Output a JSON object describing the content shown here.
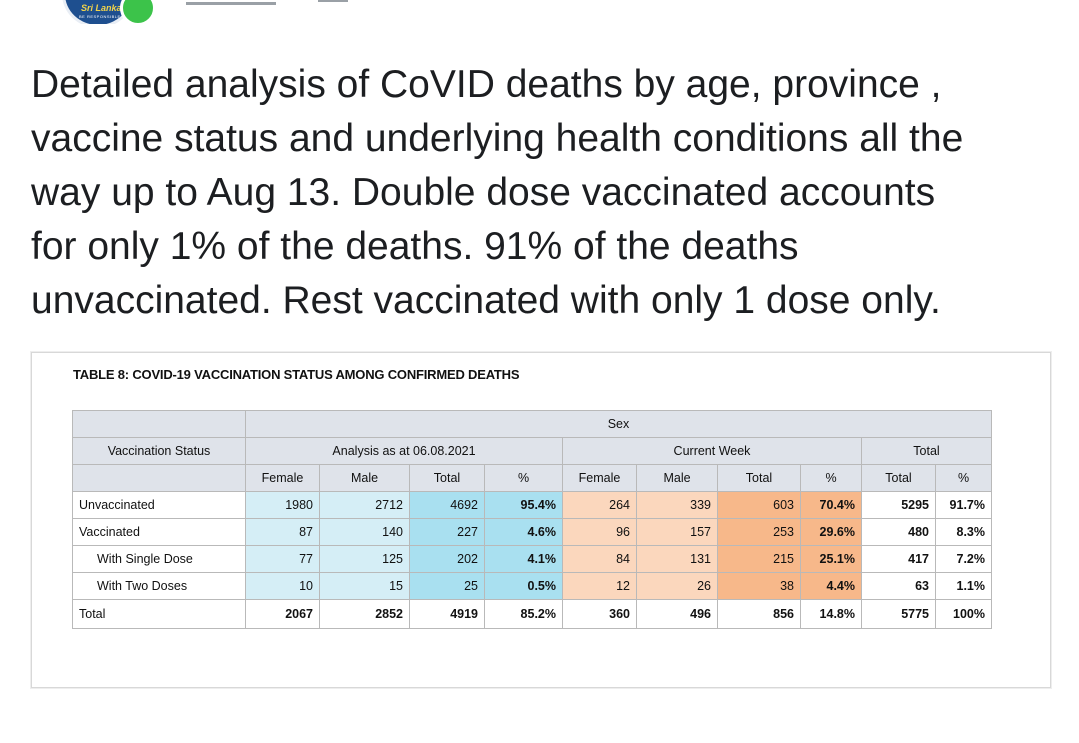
{
  "post": {
    "lines": [
      "Detailed analysis of CoVID deaths by age, province ,",
      "vaccine status and underlying health conditions all the",
      "way up to Aug 13. Double dose vaccinated accounts",
      "for only 1% of the deaths. 91% of the deaths",
      "unvaccinated. Rest vaccinated with only 1 dose only."
    ]
  },
  "avatar": {
    "logo_text": "Sri Lanka",
    "logo_sub": "BE RESPONSIBLE"
  },
  "table": {
    "caption": "TABLE 8: COVID-19 VACCINATION STATUS AMONG CONFIRMED DEATHS",
    "sex_header": "Sex",
    "status_header": "Vaccination Status",
    "group_analysis": "Analysis as at 06.08.2021",
    "group_current": "Current Week",
    "group_total": "Total",
    "cols": [
      "Female",
      "Male",
      "Total",
      "%",
      "Female",
      "Male",
      "Total",
      "%",
      "Total",
      "%"
    ],
    "rows": [
      {
        "label": "Unvaccinated",
        "values": [
          "1980",
          "2712",
          "4692",
          "95.4%",
          "264",
          "339",
          "603",
          "70.4%",
          "5295",
          "91.7%"
        ]
      },
      {
        "label": "Vaccinated",
        "values": [
          "87",
          "140",
          "227",
          "4.6%",
          "96",
          "157",
          "253",
          "29.6%",
          "480",
          "8.3%"
        ]
      },
      {
        "label": "With Single Dose",
        "values": [
          "77",
          "125",
          "202",
          "4.1%",
          "84",
          "131",
          "215",
          "25.1%",
          "417",
          "7.2%"
        ]
      },
      {
        "label": "With Two Doses",
        "values": [
          "10",
          "15",
          "25",
          "0.5%",
          "12",
          "26",
          "38",
          "4.4%",
          "63",
          "1.1%"
        ]
      },
      {
        "label": "Total",
        "values": [
          "2067",
          "2852",
          "4919",
          "85.2%",
          "360",
          "496",
          "856",
          "14.8%",
          "5775",
          "100%"
        ]
      }
    ]
  }
}
